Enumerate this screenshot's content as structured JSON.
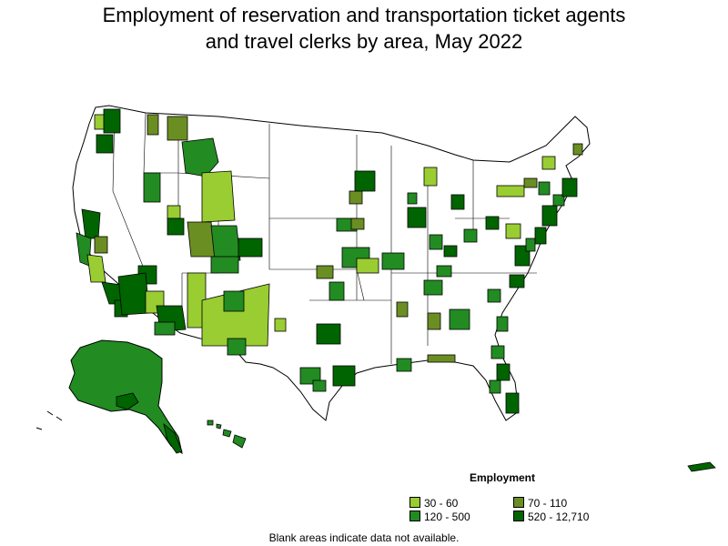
{
  "title": {
    "line1": "Employment of reservation and transportation ticket agents",
    "line2": "and travel clerks by area, May 2022"
  },
  "legend": {
    "title": "Employment",
    "items": [
      {
        "label": "30 - 60",
        "color": "#9acd32"
      },
      {
        "label": "70 - 110",
        "color": "#6b8e23"
      },
      {
        "label": "120 - 500",
        "color": "#228b22"
      },
      {
        "label": "520 - 12,710",
        "color": "#006400"
      }
    ]
  },
  "footnote": "Blank areas indicate data not available.",
  "colors": {
    "c1": "#9acd32",
    "c2": "#6b8e23",
    "c3": "#228b22",
    "c4": "#006400",
    "blank": "#ffffff",
    "border": "#000000"
  }
}
